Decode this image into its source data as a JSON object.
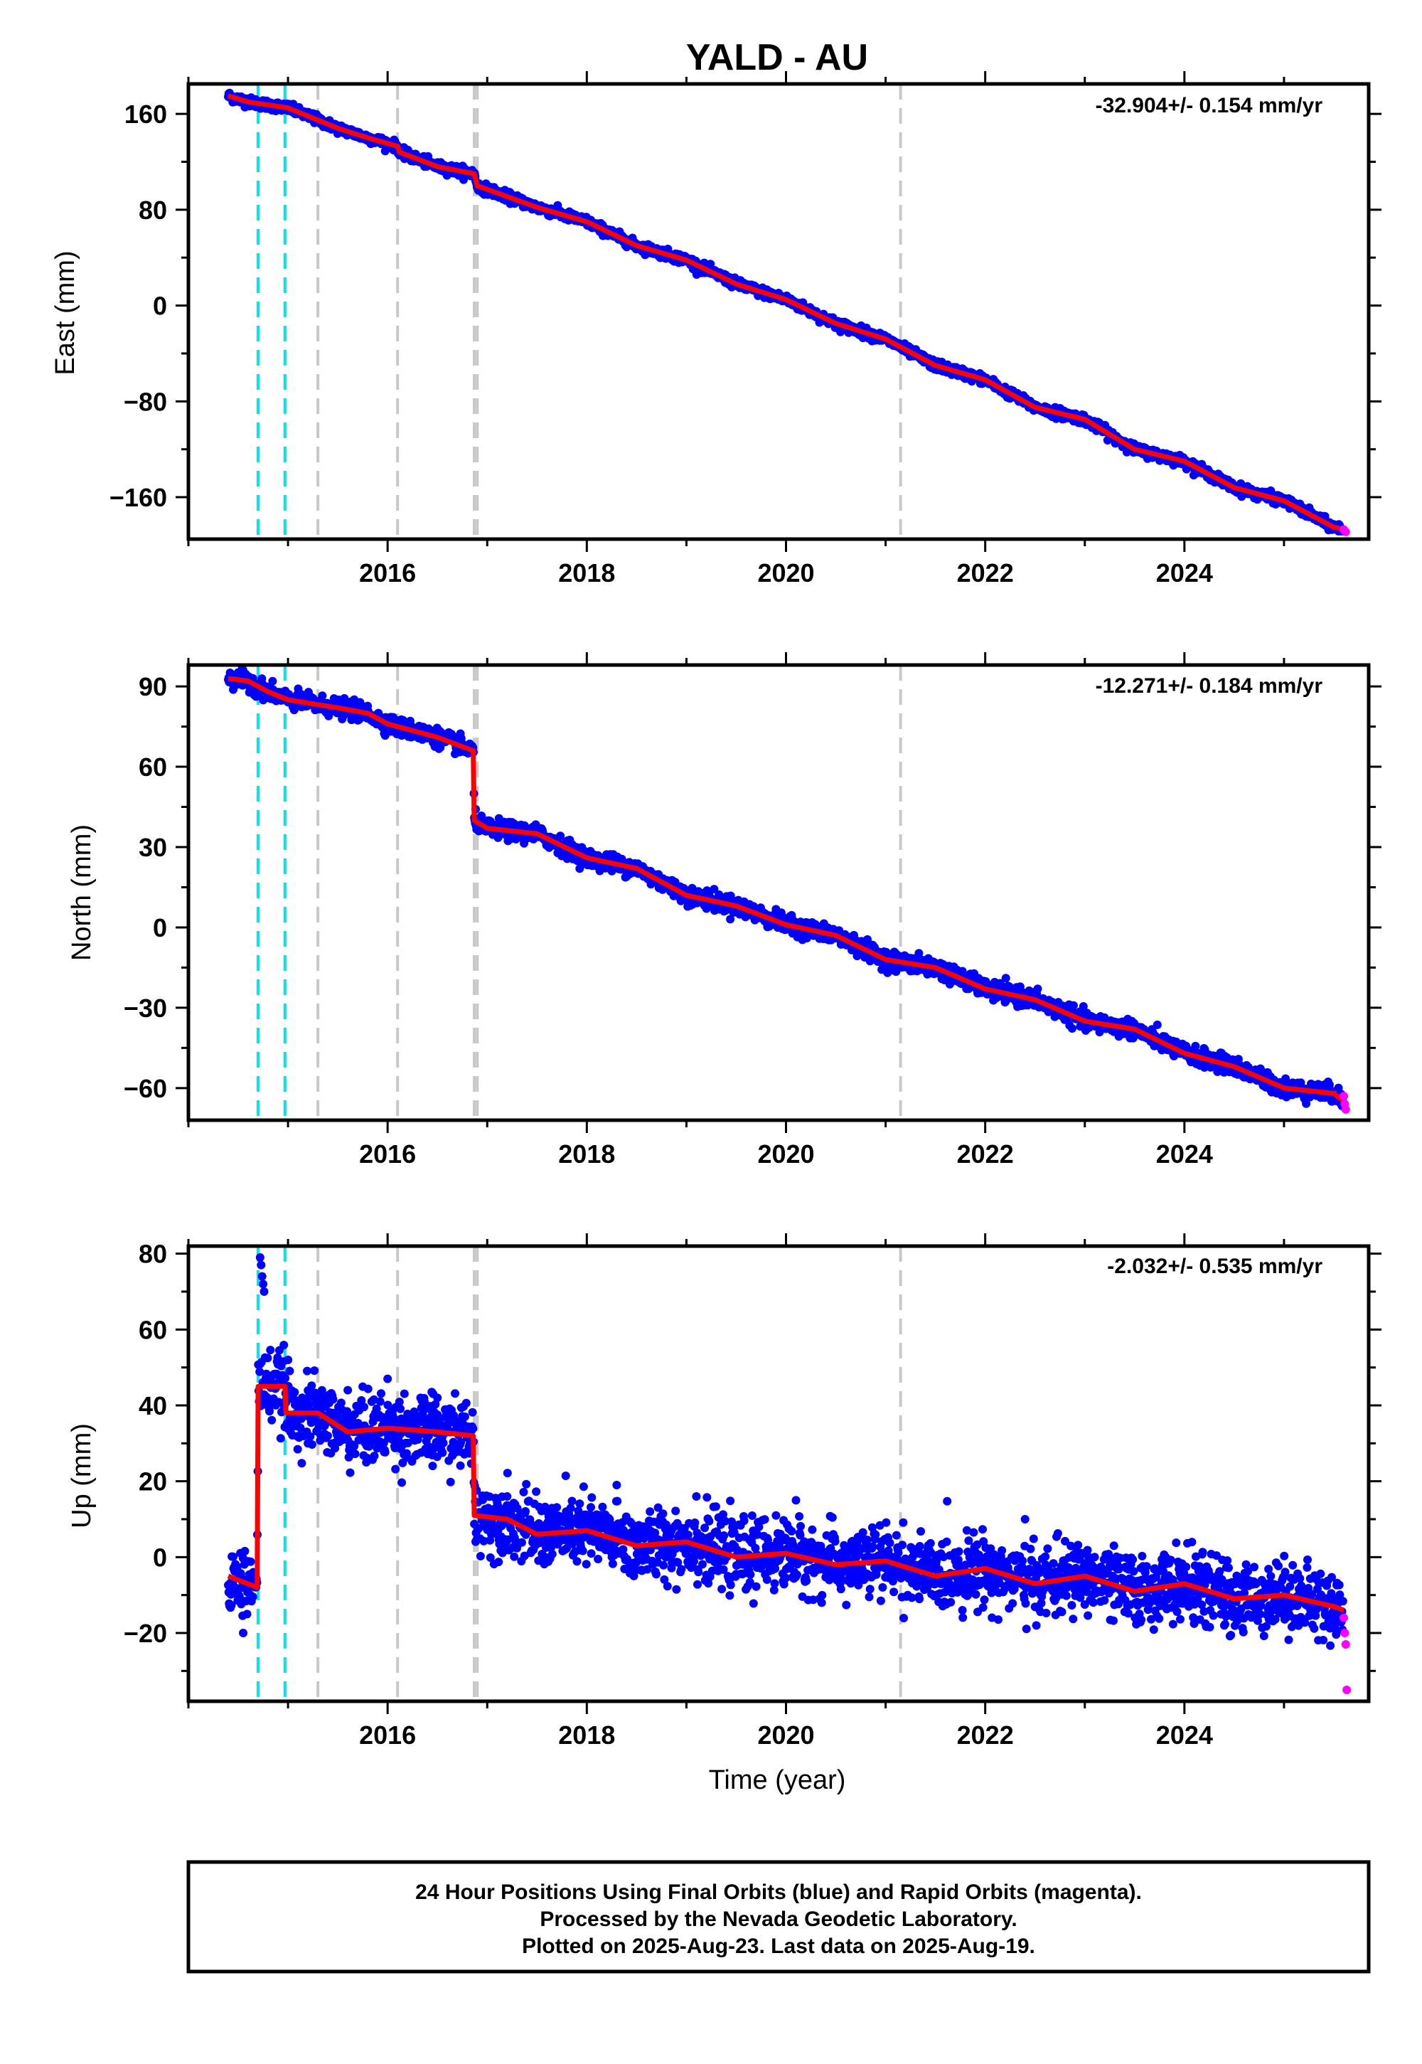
{
  "page": {
    "title": "YALD - AU",
    "footer": {
      "line1": "24 Hour Positions Using Final Orbits (blue) and Rapid Orbits (magenta).",
      "line2": "Processed by the Nevada Geodetic Laboratory.",
      "line3": "Plotted on 2025-Aug-23. Last data on 2025-Aug-19."
    },
    "colors": {
      "final_orbits": "#0000ff",
      "rapid_orbits": "#ff00ff",
      "model": "#ff0000",
      "equipment_change": "#c8c8c8",
      "earthquake": "#00e5ee"
    }
  },
  "chart_data": [
    {
      "type": "scatter",
      "component": "east",
      "ylabel": "East (mm)",
      "xlabel": "",
      "rate": "-32.904+/- 0.154 mm/yr",
      "xlim": [
        2014.0,
        2025.85
      ],
      "ylim": [
        -195,
        185
      ],
      "xticks": [
        2016,
        2018,
        2020,
        2022,
        2024
      ],
      "yticks": [
        -160,
        -80,
        0,
        80,
        160
      ],
      "grid": false,
      "noise_mm": 2.0,
      "model": [
        [
          2014.4,
          175
        ],
        [
          2014.6,
          170
        ],
        [
          2015.0,
          165
        ],
        [
          2015.5,
          148
        ],
        [
          2015.8,
          140
        ],
        [
          2016.1,
          133
        ],
        [
          2016.12,
          128
        ],
        [
          2016.5,
          116
        ],
        [
          2016.87,
          110
        ],
        [
          2016.9,
          100
        ],
        [
          2017.5,
          82
        ],
        [
          2018.0,
          70
        ],
        [
          2018.5,
          50
        ],
        [
          2019.0,
          38
        ],
        [
          2019.5,
          18
        ],
        [
          2020.0,
          5
        ],
        [
          2020.5,
          -15
        ],
        [
          2021.0,
          -28
        ],
        [
          2021.5,
          -50
        ],
        [
          2022.0,
          -62
        ],
        [
          2022.5,
          -85
        ],
        [
          2023.0,
          -95
        ],
        [
          2023.5,
          -120
        ],
        [
          2024.0,
          -130
        ],
        [
          2024.5,
          -152
        ],
        [
          2025.0,
          -163
        ],
        [
          2025.5,
          -185
        ],
        [
          2025.6,
          -187
        ]
      ],
      "rapid_points": [
        [
          2025.6,
          -187
        ],
        [
          2025.62,
          -189
        ]
      ],
      "equipment_changes": [
        2015.3,
        2016.1,
        2016.87,
        2016.9,
        2021.15
      ],
      "earthquakes": [
        2014.7,
        2014.97
      ]
    },
    {
      "type": "scatter",
      "component": "north",
      "ylabel": "North (mm)",
      "xlabel": "",
      "rate": "-12.271+/- 0.184 mm/yr",
      "xlim": [
        2014.0,
        2025.85
      ],
      "ylim": [
        -72,
        98
      ],
      "xticks": [
        2016,
        2018,
        2020,
        2022,
        2024
      ],
      "yticks": [
        -60,
        -30,
        0,
        30,
        60,
        90
      ],
      "grid": false,
      "noise_mm": 1.6,
      "model": [
        [
          2014.4,
          93
        ],
        [
          2014.6,
          92
        ],
        [
          2014.8,
          88
        ],
        [
          2015.0,
          85
        ],
        [
          2015.5,
          82
        ],
        [
          2015.8,
          80
        ],
        [
          2016.0,
          76
        ],
        [
          2016.5,
          71
        ],
        [
          2016.86,
          66
        ],
        [
          2016.87,
          40
        ],
        [
          2017.0,
          37
        ],
        [
          2017.5,
          35
        ],
        [
          2018.0,
          26
        ],
        [
          2018.5,
          22
        ],
        [
          2019.0,
          12
        ],
        [
          2019.5,
          8
        ],
        [
          2020.0,
          1
        ],
        [
          2020.5,
          -3
        ],
        [
          2021.0,
          -12
        ],
        [
          2021.5,
          -15
        ],
        [
          2022.0,
          -23
        ],
        [
          2022.5,
          -27
        ],
        [
          2023.0,
          -35
        ],
        [
          2023.5,
          -38
        ],
        [
          2024.0,
          -47
        ],
        [
          2024.5,
          -52
        ],
        [
          2025.0,
          -60
        ],
        [
          2025.5,
          -62
        ],
        [
          2025.6,
          -65
        ]
      ],
      "rapid_points": [
        [
          2025.6,
          -63
        ],
        [
          2025.61,
          -66
        ],
        [
          2025.62,
          -68
        ]
      ],
      "equipment_changes": [
        2015.3,
        2016.1,
        2016.87,
        2016.9,
        2021.15
      ],
      "earthquakes": [
        2014.7,
        2014.97
      ]
    },
    {
      "type": "scatter",
      "component": "up",
      "ylabel": "Up (mm)",
      "xlabel": "Time (year)",
      "rate": "-2.032+/- 0.535 mm/yr",
      "xlim": [
        2014.0,
        2025.85
      ],
      "ylim": [
        -38,
        82
      ],
      "xticks": [
        2016,
        2018,
        2020,
        2022,
        2024
      ],
      "yticks": [
        -20,
        0,
        20,
        40,
        60,
        80
      ],
      "grid": false,
      "noise_mm": 4.5,
      "model": [
        [
          2014.4,
          -5
        ],
        [
          2014.69,
          -8
        ],
        [
          2014.7,
          45
        ],
        [
          2014.97,
          45
        ],
        [
          2014.98,
          38
        ],
        [
          2015.3,
          38
        ],
        [
          2015.6,
          33
        ],
        [
          2016.0,
          34
        ],
        [
          2016.5,
          33
        ],
        [
          2016.86,
          32
        ],
        [
          2016.87,
          11
        ],
        [
          2017.2,
          10
        ],
        [
          2017.5,
          6
        ],
        [
          2018.0,
          7
        ],
        [
          2018.5,
          3
        ],
        [
          2019.0,
          4
        ],
        [
          2019.5,
          0
        ],
        [
          2020.0,
          1
        ],
        [
          2020.5,
          -2
        ],
        [
          2021.0,
          -1
        ],
        [
          2021.5,
          -5
        ],
        [
          2022.0,
          -3
        ],
        [
          2022.5,
          -7
        ],
        [
          2023.0,
          -5
        ],
        [
          2023.5,
          -9
        ],
        [
          2024.0,
          -7
        ],
        [
          2024.5,
          -11
        ],
        [
          2025.0,
          -10
        ],
        [
          2025.5,
          -13
        ],
        [
          2025.6,
          -14
        ]
      ],
      "outliers": [
        [
          2014.72,
          79
        ],
        [
          2014.73,
          77
        ],
        [
          2014.74,
          74
        ],
        [
          2014.75,
          72
        ],
        [
          2014.76,
          70
        ],
        [
          2014.85,
          48
        ],
        [
          2015.0,
          52
        ],
        [
          2015.6,
          44
        ],
        [
          2016.0,
          47
        ],
        [
          2016.5,
          42
        ],
        [
          2015.2,
          30
        ],
        [
          2017.2,
          16
        ],
        [
          2018.3,
          19
        ],
        [
          2019.1,
          16
        ],
        [
          2020.1,
          15
        ],
        [
          2022.4,
          10
        ],
        [
          2024.4,
          -18
        ],
        [
          2014.55,
          -20
        ]
      ],
      "rapid_points": [
        [
          2025.6,
          -16
        ],
        [
          2025.61,
          -20
        ],
        [
          2025.62,
          -23
        ],
        [
          2025.63,
          -35
        ]
      ],
      "equipment_changes": [
        2015.3,
        2016.1,
        2016.87,
        2016.9,
        2021.15
      ],
      "earthquakes": [
        2014.7,
        2014.97
      ]
    }
  ]
}
